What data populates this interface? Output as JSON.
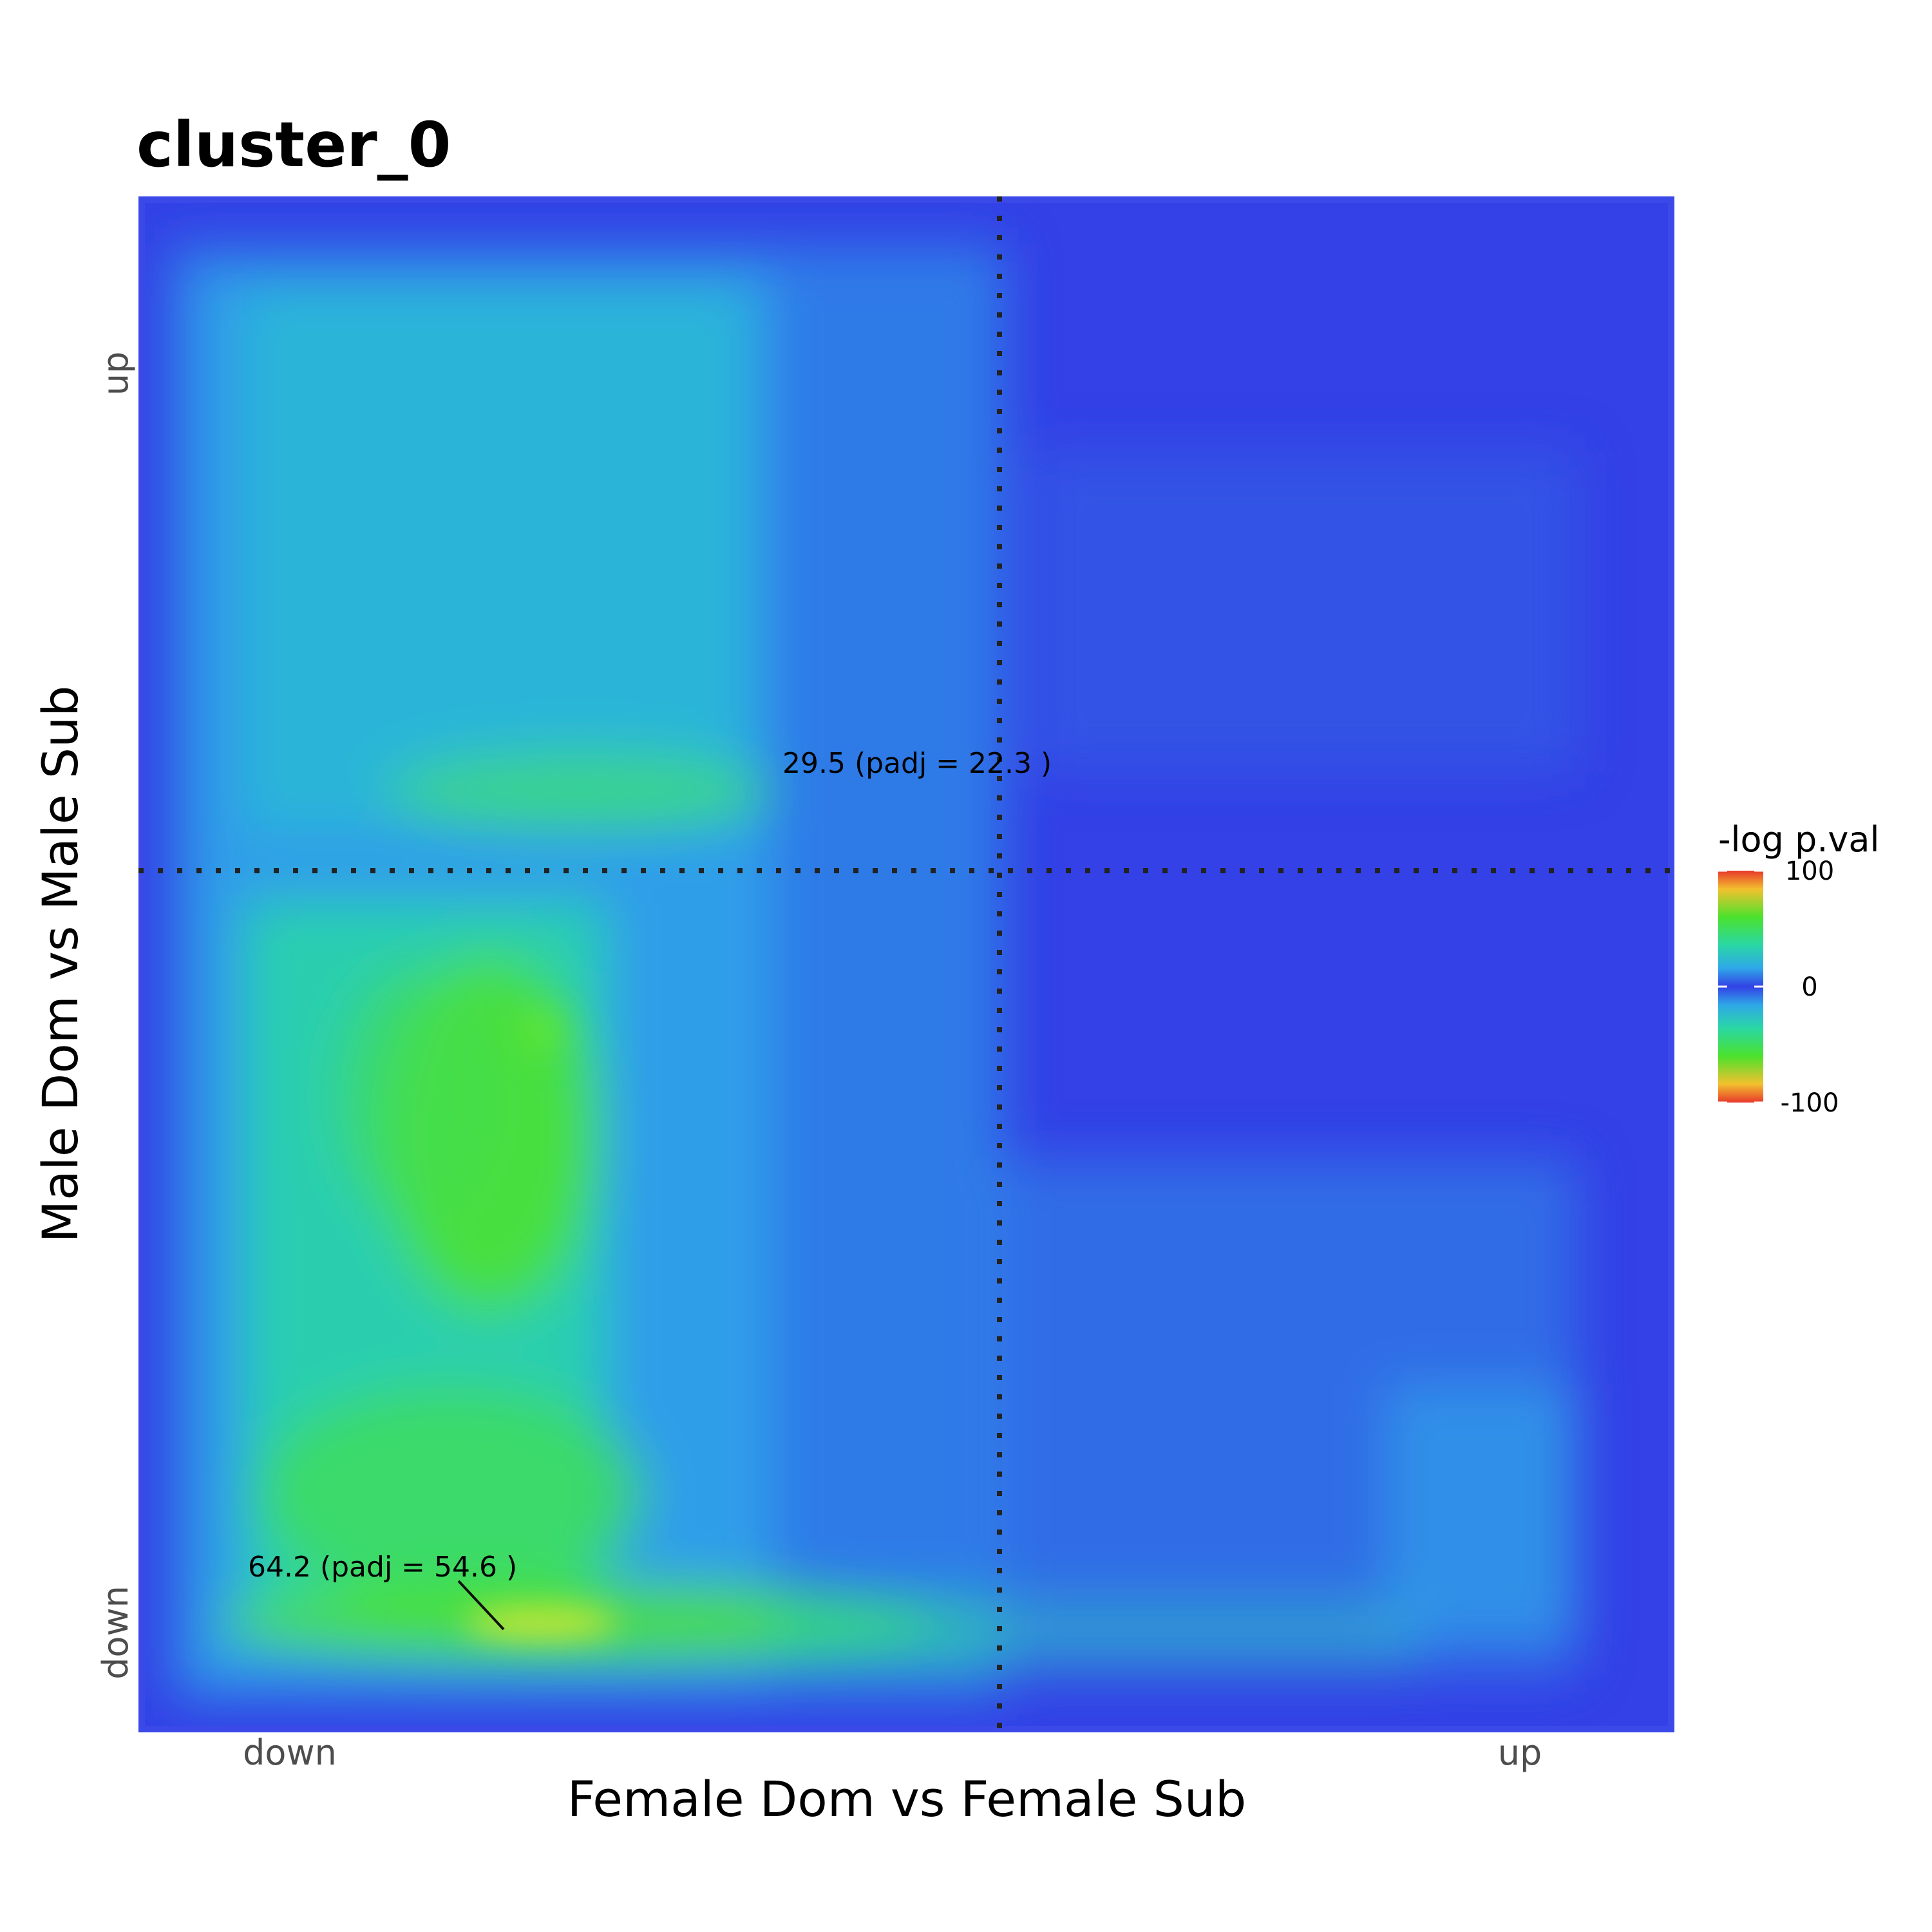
{
  "chart_data": {
    "type": "heatmap",
    "title": "cluster_0",
    "xlabel": "Female Dom vs Female Sub",
    "ylabel": "Male Dom vs Male Sub",
    "x_ticks": [
      "down",
      "up"
    ],
    "y_ticks": [
      "down",
      "up"
    ],
    "legend": {
      "title": "-log p.val",
      "ticks": [
        "100",
        "0",
        "-100"
      ],
      "range": [
        -100,
        100
      ],
      "colors": [
        "#e8392c",
        "#f2c12e",
        "#4be22d",
        "#2ad7a4",
        "#2fa8e8",
        "#3341e6"
      ]
    },
    "base_color": "#3341e6",
    "annotations": [
      {
        "label": "29.5 (padj = 22.3 )",
        "value": 29.5,
        "padj": 22.3,
        "quadrant": "top-left"
      },
      {
        "label": "64.2 (padj = 54.6 )",
        "value": 64.2,
        "padj": 54.6,
        "quadrant": "bottom-left"
      }
    ],
    "divider_lines": [
      "vertical",
      "horizontal"
    ]
  }
}
